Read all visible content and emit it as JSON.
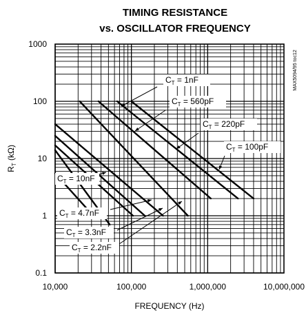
{
  "chart_data": {
    "type": "line",
    "title_line1": "TIMING RESISTANCE",
    "title_line2": "vs. OSCILLATOR FREQUENCY",
    "xlabel": "FREQUENCY (Hz)",
    "ylabel": "R_T (kΩ)",
    "xlim": [
      10000,
      10000000
    ],
    "ylim": [
      0.1,
      1000
    ],
    "xscale": "log",
    "yscale": "log",
    "grid": true,
    "x_ticks": [
      "10,000",
      "100,000",
      "1,000,000",
      "10,000,000"
    ],
    "y_ticks": [
      "0.1",
      "1",
      "10",
      "100",
      "1000"
    ],
    "ylabel_main": "R",
    "ylabel_sub": "T",
    "ylabel_unit": " (kΩ)",
    "watermark": "MAX5094/95 toc12",
    "series": [
      {
        "name": "C_T = 1nF",
        "x": [
          100000,
          4000000
        ],
        "y": [
          100,
          2
        ]
      },
      {
        "name": "C_T = 560pF",
        "x": [
          65000,
          2500000
        ],
        "y": [
          100,
          2
        ]
      },
      {
        "name": "C_T = 220pF",
        "x": [
          37000,
          1100000
        ],
        "y": [
          100,
          2
        ]
      },
      {
        "name": "C_T = 100pF",
        "x": [
          21000,
          550000
        ],
        "y": [
          100,
          1
        ]
      },
      {
        "name": "C_T = 10nF",
        "x": [
          10000,
          260000
        ],
        "y": [
          40,
          1
        ]
      },
      {
        "name": "C_T = 4.7nF",
        "x": [
          10000,
          150000
        ],
        "y": [
          25,
          1
        ]
      },
      {
        "name": "C_T = 3.3nF",
        "x": [
          10000,
          105000
        ],
        "y": [
          17,
          1
        ]
      },
      {
        "name": "C_T = 2.2nF",
        "x": [
          10000,
          52000
        ],
        "y": [
          14,
          0.7
        ]
      },
      {
        "name": "C_T = 1nF ",
        "x": [
          10000,
          28000
        ],
        "y": [
          5.5,
          1.2
        ]
      }
    ],
    "annotations": [
      {
        "label_main": "C",
        "label_sub": "T",
        "label_rest": " = 1nF"
      },
      {
        "label_main": "C",
        "label_sub": "T",
        "label_rest": " = 560pF"
      },
      {
        "label_main": "C",
        "label_sub": "T",
        "label_rest": " = 220pF"
      },
      {
        "label_main": "C",
        "label_sub": "T",
        "label_rest": " = 100pF"
      },
      {
        "label_main": "C",
        "label_sub": "T",
        "label_rest": " = 10nF"
      },
      {
        "label_main": "C",
        "label_sub": "T",
        "label_rest": " = 4.7nF"
      },
      {
        "label_main": "C",
        "label_sub": "T",
        "label_rest": " = 3.3nF"
      },
      {
        "label_main": "C",
        "label_sub": "T",
        "label_rest": " = 2.2nF"
      }
    ]
  }
}
